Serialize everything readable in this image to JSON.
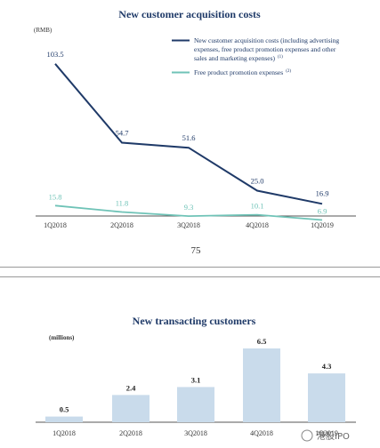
{
  "page_number": "75",
  "watermark_text": "港股IPO",
  "chart_data": [
    {
      "type": "line",
      "title": "New customer acquisition costs",
      "unit_label": "(RMB)",
      "categories": [
        "1Q2018",
        "2Q2018",
        "3Q2018",
        "4Q2018",
        "1Q2019"
      ],
      "ylim": [
        0,
        110
      ],
      "grid": false,
      "legend_position": "top-right",
      "series": [
        {
          "name": "New customer acquisition costs (including advertising expenses, free product promotion expenses and other sales and marketing expenses)",
          "legend_lines": [
            "New customer acquisition costs (including advertising",
            "expenses, free product promotion expenses and other",
            "sales and marketing expenses)"
          ],
          "footnote": "(1)",
          "color": "#1f3a68",
          "values": [
            103.5,
            54.7,
            51.6,
            25.0,
            16.9
          ],
          "labels": [
            "103.5",
            "54.7",
            "51.6",
            "25.0",
            "16.9"
          ]
        },
        {
          "name": "Free product promotion expenses",
          "legend_lines": [
            "Free product promotion expenses"
          ],
          "footnote": "(2)",
          "color": "#6fc3b7",
          "values": [
            15.8,
            11.8,
            9.3,
            10.1,
            6.9
          ],
          "labels": [
            "15.8",
            "11.8",
            "9.3",
            "10.1",
            "6.9"
          ]
        }
      ]
    },
    {
      "type": "bar",
      "title": "New transacting customers",
      "unit_label": "(millions)",
      "categories": [
        "1Q2018",
        "2Q2018",
        "3Q2018",
        "4Q2018",
        "1Q2019"
      ],
      "values": [
        0.5,
        2.4,
        3.1,
        6.5,
        4.3
      ],
      "labels": [
        "0.5",
        "2.4",
        "3.1",
        "6.5",
        "4.3"
      ],
      "ylim": [
        0,
        6.5
      ],
      "color": "#c9dbeb",
      "grid": false
    }
  ]
}
